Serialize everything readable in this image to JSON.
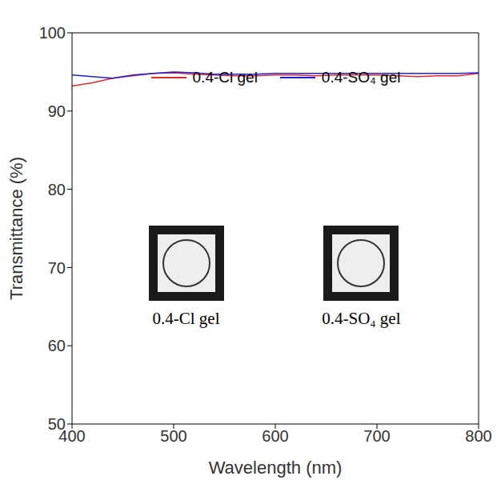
{
  "chart_data": {
    "type": "line",
    "x_label": "Wavelength (nm)",
    "y_label": "Transmittance (%)",
    "x": [
      400,
      420,
      440,
      460,
      480,
      500,
      520,
      540,
      560,
      580,
      600,
      620,
      640,
      660,
      680,
      700,
      720,
      740,
      760,
      780,
      800
    ],
    "series": [
      {
        "name": "0.4-Cl gel",
        "color": "#e8282b",
        "line_style": "solid",
        "marker": "none",
        "values": [
          93.2,
          93.6,
          94.2,
          94.5,
          94.8,
          94.9,
          94.7,
          94.6,
          94.5,
          94.5,
          94.6,
          94.6,
          94.5,
          94.6,
          94.6,
          94.6,
          94.5,
          94.4,
          94.5,
          94.5,
          94.8
        ]
      },
      {
        "name": "0.4-SO₄ gel",
        "color": "#1f1fe0",
        "line_style": "solid",
        "marker": "none",
        "values": [
          94.6,
          94.4,
          94.2,
          94.6,
          94.8,
          95.0,
          94.9,
          94.7,
          94.7,
          94.7,
          94.8,
          94.8,
          94.8,
          94.8,
          94.8,
          94.8,
          94.8,
          94.8,
          94.8,
          94.8,
          94.9
        ]
      }
    ],
    "xlim": [
      400,
      800
    ],
    "xticks": [
      400,
      500,
      600,
      700,
      800
    ],
    "ylim": [
      50,
      100
    ],
    "yticks": [
      50,
      60,
      70,
      80,
      90,
      100
    ],
    "grid": false,
    "legend": "top",
    "annotations": [
      "0.4-Cl gel",
      "0.4-SO₄ gel"
    ]
  }
}
